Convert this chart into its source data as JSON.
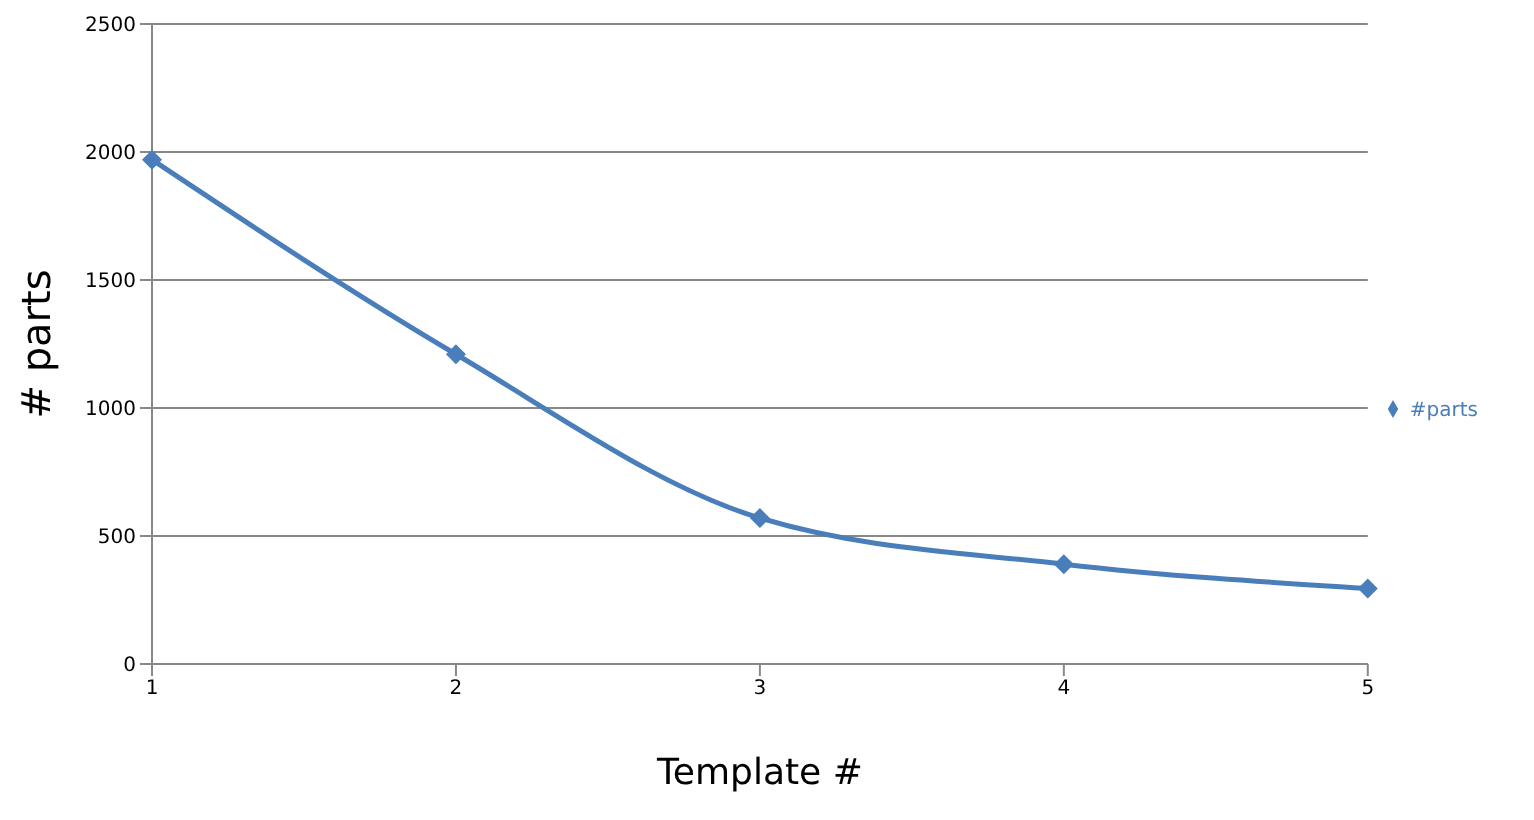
{
  "chart_data": {
    "type": "line",
    "xlabel": "Template #",
    "ylabel": "# parts",
    "categories": [
      "1",
      "2",
      "3",
      "4",
      "5"
    ],
    "series": [
      {
        "name": "#parts",
        "color": "#4a7ebb",
        "values": [
          1970,
          1210,
          570,
          390,
          295
        ]
      }
    ],
    "ylim": [
      0,
      2500
    ],
    "yticks": [
      0,
      500,
      1000,
      1500,
      2000,
      2500
    ],
    "grid": "y",
    "legend": "right",
    "marker": "diamond",
    "line_style": "solid"
  }
}
